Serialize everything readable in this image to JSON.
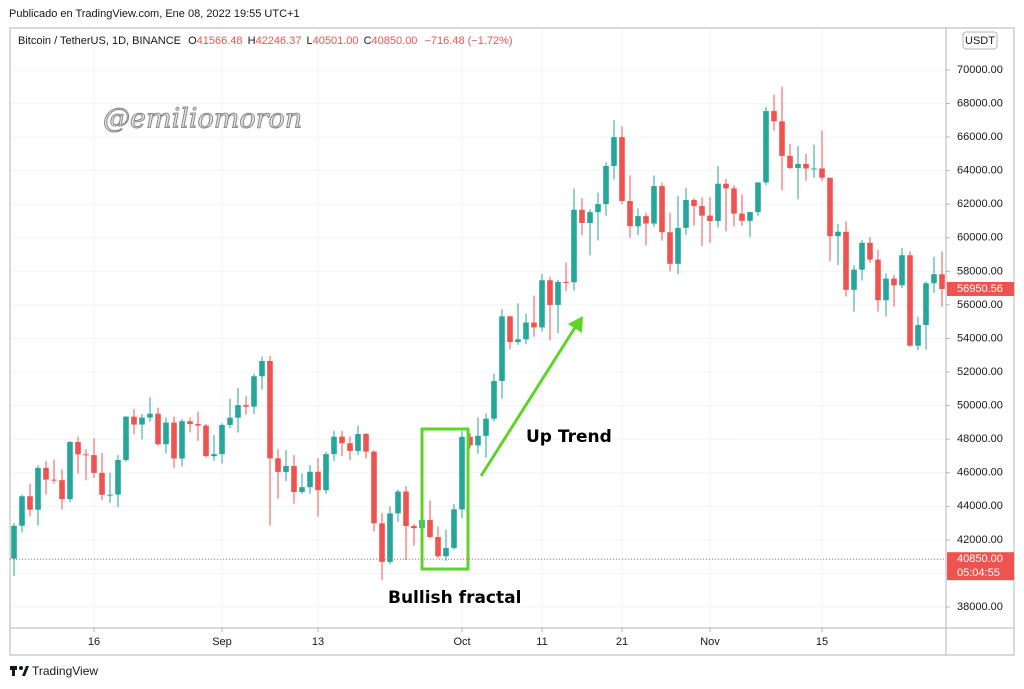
{
  "header": "Publicado en TradingView.com, Ene 08, 2022 19:55 UTC+1",
  "watermark": "@emiliomoron",
  "footer": "TradingView",
  "chart_data": {
    "type": "candlestick",
    "symbol": "Bitcoin / TetherUS, 1D, BINANCE",
    "ohlc": [
      {
        "key": "O",
        "value": "41566.48"
      },
      {
        "key": "H",
        "value": "42246.37"
      },
      {
        "key": "L",
        "value": "40501.00"
      },
      {
        "key": "C",
        "value": "40850.00"
      }
    ],
    "change": "−716.48 (−1.72%)",
    "currency": "USDT",
    "annotations": [
      "Up Trend",
      "Bullish fractal"
    ],
    "up_color": "#26a69a",
    "down_color": "#ef5350",
    "open": [
      40880,
      42840,
      44600,
      43800,
      46290,
      45590,
      45560,
      44430,
      47830,
      47100,
      47050,
      45990,
      44690,
      44700,
      46760,
      49340,
      48870,
      49290,
      49520,
      47700,
      48990,
      46850,
      49070,
      48900,
      48810,
      46990,
      47110,
      48850,
      49280,
      50030,
      49940,
      51750,
      52660,
      46860,
      46050,
      46400,
      44850,
      45140,
      46060,
      44960,
      47110,
      48150,
      47760,
      47300,
      48310,
      47260,
      42990,
      40690,
      43580,
      44880,
      42830,
      42700,
      43180,
      42170,
      41030,
      41520,
      43820,
      48140,
      47630,
      48200,
      49220,
      51470,
      55320,
      53790,
      53950,
      54950,
      54660,
      57470,
      56000,
      57370,
      57350,
      61670,
      60880,
      61530,
      62010,
      64280,
      66000,
      62190,
      60690,
      61290,
      60850,
      63080,
      60330,
      58450,
      60590,
      62250,
      61890,
      61320,
      61000,
      63220,
      62940,
      61440,
      61010,
      61530,
      63300,
      67550,
      66940,
      64880,
      64160,
      64400,
      64130,
      64130,
      63580,
      60100,
      60360,
      56900,
      58100,
      59700,
      58700,
      56280,
      57570,
      57170,
      58960,
      53570,
      54800,
      57290,
      57830
    ],
    "high": [
      43000,
      44700,
      45350,
      46450,
      46700,
      46780,
      46200,
      47890,
      48150,
      47400,
      48050,
      47170,
      46000,
      47050,
      49380,
      49800,
      49500,
      50500,
      49880,
      49300,
      49360,
      49200,
      49300,
      49650,
      48910,
      48250,
      48950,
      50400,
      51050,
      50560,
      51900,
      52920,
      52950,
      47400,
      47350,
      47050,
      45980,
      46460,
      46880,
      47250,
      48500,
      48490,
      48170,
      48810,
      48370,
      47340,
      43600,
      44000,
      45000,
      45200,
      42960,
      43940,
      44350,
      42790,
      42620,
      44130,
      48500,
      48360,
      49300,
      49530,
      51890,
      55750,
      55330,
      56100,
      55490,
      56560,
      57840,
      57680,
      57500,
      58530,
      62930,
      62350,
      61700,
      62690,
      64490,
      67000,
      66640,
      63730,
      61750,
      61490,
      63710,
      63290,
      61500,
      62500,
      62980,
      62360,
      62400,
      62420,
      64270,
      63500,
      63120,
      62590,
      61560,
      63300,
      67790,
      68530,
      69000,
      65600,
      65460,
      65000,
      65550,
      66400,
      63580,
      60820,
      60980,
      58380,
      59850,
      60050,
      59300,
      57880,
      57800,
      59400,
      59200,
      55300,
      57400,
      58870,
      59200
    ],
    "low": [
      39850,
      42450,
      43400,
      42850,
      44700,
      45350,
      43800,
      44250,
      45950,
      45550,
      45680,
      44380,
      44200,
      43950,
      46650,
      48300,
      48000,
      49050,
      47600,
      47150,
      46300,
      46370,
      48400,
      47900,
      46900,
      46700,
      46550,
      48650,
      48400,
      49450,
      49500,
      50950,
      42850,
      44450,
      45500,
      44150,
      44750,
      44750,
      43370,
      44750,
      46700,
      47000,
      46750,
      47050,
      46850,
      42500,
      39600,
      40550,
      43090,
      40800,
      41650,
      40750,
      42100,
      40900,
      40750,
      41420,
      43300,
      47440,
      47130,
      46900,
      49050,
      50400,
      53360,
      53620,
      53660,
      54100,
      54420,
      53880,
      54300,
      56820,
      56850,
      60150,
      58960,
      59840,
      61320,
      63480,
      62000,
      60000,
      60150,
      59550,
      60650,
      59820,
      58000,
      57820,
      60170,
      60720,
      59500,
      59700,
      60620,
      60380,
      60680,
      60720,
      60050,
      61320,
      63120,
      66380,
      62820,
      64100,
      62300,
      63400,
      63580,
      63400,
      58600,
      58370,
      56500,
      55600,
      57450,
      58500,
      55600,
      55300,
      55900,
      57000,
      53500,
      53300,
      53330,
      56700,
      55900
    ],
    "close": [
      42840,
      44600,
      43800,
      46290,
      45590,
      45560,
      44430,
      47830,
      47100,
      47050,
      45990,
      44690,
      44700,
      46760,
      49340,
      48870,
      49290,
      49520,
      47700,
      48990,
      46850,
      49070,
      48900,
      48810,
      46990,
      47110,
      48850,
      49280,
      50030,
      49940,
      51750,
      52660,
      46860,
      46050,
      46400,
      44850,
      45140,
      46060,
      44960,
      47110,
      48150,
      47760,
      47300,
      48310,
      47260,
      42990,
      40690,
      43580,
      44880,
      42830,
      42700,
      43180,
      42170,
      41030,
      41520,
      43820,
      48140,
      47630,
      48200,
      49220,
      51470,
      55320,
      53790,
      53950,
      54950,
      54660,
      57470,
      56000,
      57370,
      57350,
      61670,
      60880,
      61530,
      62010,
      64280,
      66000,
      62190,
      60690,
      61290,
      60850,
      63080,
      60330,
      58450,
      60590,
      62250,
      61890,
      61320,
      61000,
      63220,
      62940,
      61440,
      61010,
      61530,
      63300,
      67550,
      66940,
      64880,
      64160,
      64400,
      64130,
      64130,
      63580,
      60100,
      60360,
      56900,
      58100,
      59700,
      58700,
      56280,
      57570,
      57170,
      58960,
      53570,
      54800,
      57290,
      57830,
      56950.56
    ],
    "xlim": [
      -0.5,
      116.5
    ],
    "xticks": [
      {
        "value": 10,
        "label": "16"
      },
      {
        "value": 26,
        "label": "Sep"
      },
      {
        "value": 38,
        "label": "13"
      },
      {
        "value": 56,
        "label": "Oct"
      },
      {
        "value": 66,
        "label": "11"
      },
      {
        "value": 76,
        "label": "21"
      },
      {
        "value": 87,
        "label": "Nov"
      },
      {
        "value": 101,
        "label": "15"
      }
    ],
    "ylim": [
      36750,
      72500
    ],
    "yticks": [
      {
        "value": 38000,
        "label": "38000.00"
      },
      {
        "value": 40000,
        "label": "40000.00"
      },
      {
        "value": 42000,
        "label": "42000.00"
      },
      {
        "value": 44000,
        "label": "44000.00"
      },
      {
        "value": 46000,
        "label": "46000.00"
      },
      {
        "value": 48000,
        "label": "48000.00"
      },
      {
        "value": 50000,
        "label": "50000.00"
      },
      {
        "value": 52000,
        "label": "52000.00"
      },
      {
        "value": 54000,
        "label": "54000.00"
      },
      {
        "value": 56000,
        "label": "56000.00"
      },
      {
        "value": 58000,
        "label": "58000.00"
      },
      {
        "value": 60000,
        "label": "60000.00"
      },
      {
        "value": 62000,
        "label": "62000.00"
      },
      {
        "value": 64000,
        "label": "64000.00"
      },
      {
        "value": 66000,
        "label": "66000.00"
      },
      {
        "value": 68000,
        "label": "68000.00"
      },
      {
        "value": 70000,
        "label": "70000.00"
      }
    ],
    "grid": true,
    "last_price": 56950.56,
    "current_price": {
      "value": 40850,
      "label": "40850.00"
    },
    "countdown": "05:04:55"
  }
}
